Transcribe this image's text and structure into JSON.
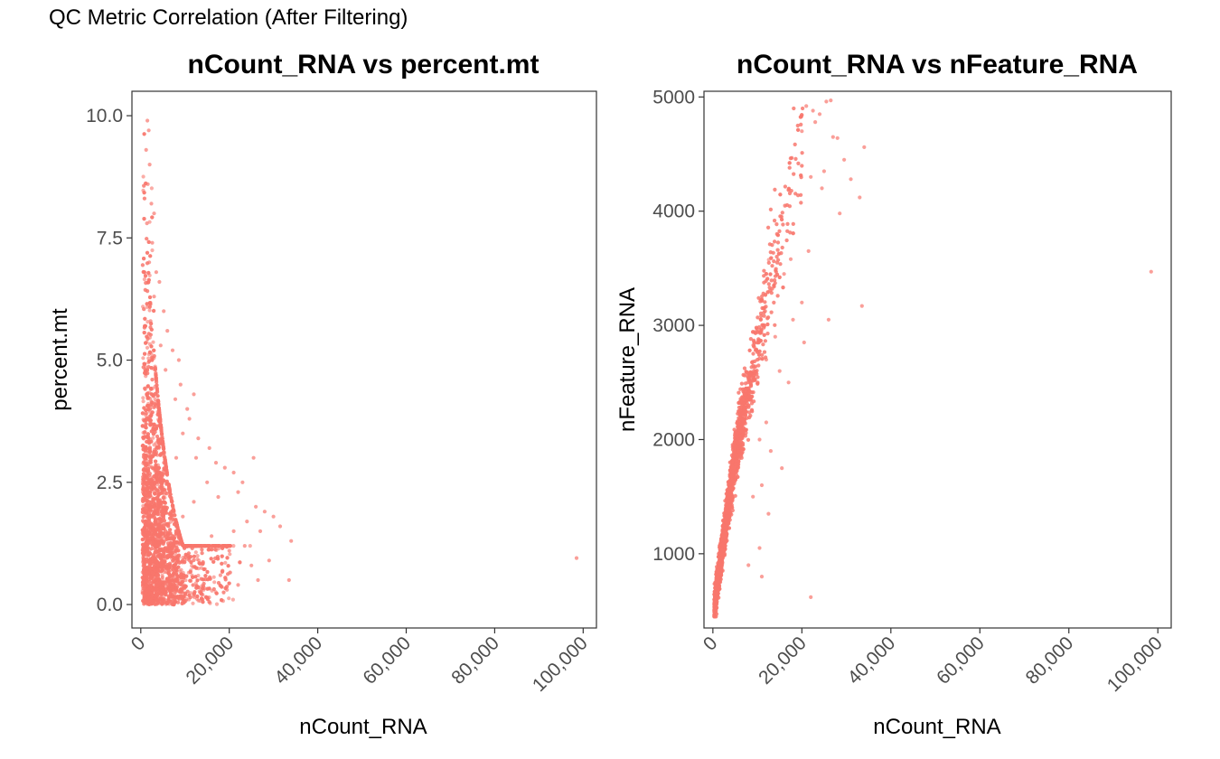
{
  "figure_title": "QC Metric Correlation (After Filtering)",
  "chart_data": [
    {
      "type": "scatter",
      "title": "nCount_RNA vs percent.mt",
      "xlabel": "nCount_RNA",
      "ylabel": "percent.mt",
      "xlim": [
        -2000,
        103000
      ],
      "ylim": [
        -0.48,
        10.5
      ],
      "xticks": [
        0,
        20000,
        40000,
        60000,
        80000,
        100000
      ],
      "xtick_labels": [
        "0",
        "20,000",
        "40,000",
        "60,000",
        "80,000",
        "100,000"
      ],
      "yticks": [
        0.0,
        2.5,
        5.0,
        7.5,
        10.0
      ],
      "ytick_labels": [
        "0.0",
        "2.5",
        "5.0",
        "7.5",
        "10.0"
      ],
      "grid": false,
      "color": "#F8766D",
      "points": [
        [
          1500,
          9.9
        ],
        [
          1800,
          9.7
        ],
        [
          1200,
          9.3
        ],
        [
          2000,
          9.0
        ],
        [
          1600,
          8.6
        ],
        [
          2400,
          8.2
        ],
        [
          3000,
          8.0
        ],
        [
          1400,
          7.8
        ],
        [
          2600,
          7.4
        ],
        [
          1900,
          7.0
        ],
        [
          3500,
          6.8
        ],
        [
          4200,
          6.6
        ],
        [
          3000,
          6.3
        ],
        [
          5200,
          6.0
        ],
        [
          2200,
          5.8
        ],
        [
          6000,
          5.6
        ],
        [
          4500,
          5.3
        ],
        [
          7200,
          5.2
        ],
        [
          8600,
          5.0
        ],
        [
          5600,
          4.8
        ],
        [
          9000,
          4.5
        ],
        [
          7800,
          4.2
        ],
        [
          10500,
          4.0
        ],
        [
          12000,
          4.3
        ],
        [
          11000,
          3.8
        ],
        [
          9500,
          3.5
        ],
        [
          13000,
          3.4
        ],
        [
          15500,
          3.2
        ],
        [
          12500,
          3.0
        ],
        [
          17000,
          2.9
        ],
        [
          19000,
          2.8
        ],
        [
          21000,
          2.7
        ],
        [
          23000,
          2.5
        ],
        [
          25500,
          3.0
        ],
        [
          22000,
          2.3
        ],
        [
          26000,
          2.0
        ],
        [
          28000,
          1.9
        ],
        [
          30000,
          1.8
        ],
        [
          24000,
          1.7
        ],
        [
          27000,
          1.5
        ],
        [
          31500,
          1.6
        ],
        [
          34000,
          1.3
        ],
        [
          33500,
          0.5
        ],
        [
          29000,
          0.9
        ],
        [
          25000,
          0.8
        ],
        [
          22000,
          0.4
        ],
        [
          20000,
          1.1
        ],
        [
          18000,
          0.6
        ],
        [
          16000,
          1.4
        ],
        [
          14000,
          0.2
        ],
        [
          12000,
          2.1
        ],
        [
          11000,
          0.9
        ],
        [
          9500,
          1.8
        ],
        [
          8000,
          3.0
        ],
        [
          21000,
          1.5
        ],
        [
          19500,
          0.3
        ],
        [
          23500,
          1.2
        ],
        [
          26500,
          0.5
        ],
        [
          17500,
          2.2
        ],
        [
          15000,
          2.5
        ],
        [
          98500,
          0.95
        ]
      ],
      "cloud": {
        "x_center": 2500,
        "x_spread": 5000,
        "x_tail": 20000,
        "y_max": 10.0,
        "y_mode": 0.9
      }
    },
    {
      "type": "scatter",
      "title": "nCount_RNA vs nFeature_RNA",
      "xlabel": "nCount_RNA",
      "ylabel": "nFeature_RNA",
      "xlim": [
        -2000,
        103000
      ],
      "ylim": [
        350,
        5050
      ],
      "xticks": [
        0,
        20000,
        40000,
        60000,
        80000,
        100000
      ],
      "xtick_labels": [
        "0",
        "20,000",
        "40,000",
        "60,000",
        "80,000",
        "100,000"
      ],
      "yticks": [
        1000,
        2000,
        3000,
        4000,
        5000
      ],
      "ytick_labels": [
        "1000",
        "2000",
        "3000",
        "4000",
        "5000"
      ],
      "grid": false,
      "color": "#F8766D",
      "points": [
        [
          21000,
          4920
        ],
        [
          22500,
          4880
        ],
        [
          24000,
          4850
        ],
        [
          25500,
          4960
        ],
        [
          26500,
          4970
        ],
        [
          23000,
          4780
        ],
        [
          20000,
          4700
        ],
        [
          27000,
          4650
        ],
        [
          28000,
          4640
        ],
        [
          29500,
          4450
        ],
        [
          25000,
          4350
        ],
        [
          22000,
          4300
        ],
        [
          31000,
          4280
        ],
        [
          24500,
          4200
        ],
        [
          33000,
          4120
        ],
        [
          28500,
          3980
        ],
        [
          34000,
          4560
        ],
        [
          21500,
          3650
        ],
        [
          17500,
          3580
        ],
        [
          16000,
          3450
        ],
        [
          20000,
          3200
        ],
        [
          18000,
          3050
        ],
        [
          14000,
          2900
        ],
        [
          12000,
          2700
        ],
        [
          15000,
          2600
        ],
        [
          17000,
          2500
        ],
        [
          20500,
          2850
        ],
        [
          26000,
          3050
        ],
        [
          33500,
          3170
        ],
        [
          12000,
          2150
        ],
        [
          10500,
          2000
        ],
        [
          13000,
          1900
        ],
        [
          15500,
          1750
        ],
        [
          11000,
          1600
        ],
        [
          9000,
          1500
        ],
        [
          12500,
          1350
        ],
        [
          10500,
          1050
        ],
        [
          22000,
          620
        ],
        [
          8000,
          900
        ],
        [
          11000,
          800
        ],
        [
          98500,
          3470
        ]
      ],
      "cloud": {
        "x_center": 4000,
        "x_spread": 4000,
        "slope_low": 0.26,
        "slope_high": 0.19,
        "y_min": 450,
        "y_max": 4500
      }
    }
  ]
}
